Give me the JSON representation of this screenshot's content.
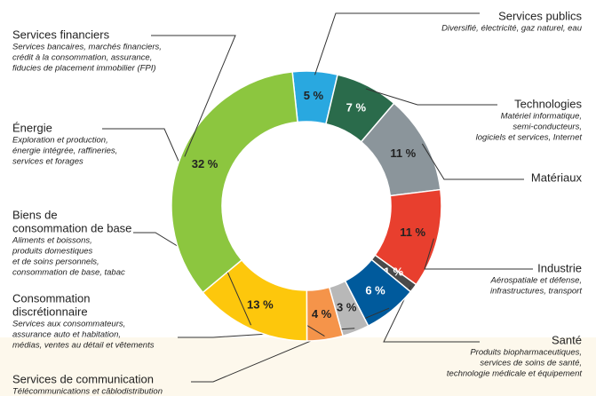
{
  "chart_data": {
    "type": "donut",
    "categories": [
      [
        "Services publics"
      ],
      [
        "Technologies"
      ],
      [
        "Matériaux"
      ],
      [
        "Industrie"
      ],
      [
        "Santé"
      ],
      [
        "Services de communication"
      ],
      [
        "Consommation",
        "discrétionnaire"
      ],
      [
        "Biens de",
        "consommation de base"
      ],
      [
        "Énergie"
      ],
      [
        "Services financiers"
      ]
    ],
    "descriptions": [
      [
        "Diversifié, électricité, gaz naturel, eau"
      ],
      [
        "Matériel informatique,",
        "semi-conducteurs,",
        "logiciels et services, Internet"
      ],
      [],
      [
        "Aérospatiale et défense,",
        "infrastructures, transport"
      ],
      [
        "Produits biopharmaceutiques,",
        "services de soins de santé,",
        "technologie médicale et équipement"
      ],
      [
        "Télécommunications et câblodistribution"
      ],
      [
        "Services aux consommateurs,",
        "assurance auto et habitation,",
        "médias, ventes au détail et vêtements"
      ],
      [
        "Aliments et boissons,",
        "produits domestiques",
        "et de soins personnels,",
        "consommation de base, tabac"
      ],
      [
        "Exploration et production,",
        "énergie intégrée, raffineries,",
        "services et forages"
      ],
      [
        "Services bancaires, marchés financiers,",
        "crédit à la consommation, assurance,",
        "fiducies de placement immobilier (FPI)"
      ]
    ],
    "values": [
      5,
      7,
      11,
      11,
      1,
      6,
      3,
      4,
      13,
      32
    ],
    "value_labels": [
      "5 %",
      "7 %",
      "11 %",
      "11 %",
      "1 %",
      "6 %",
      "3 %",
      "4 %",
      "13 %",
      "32 %"
    ],
    "colors": [
      "#29a8e0",
      "#2a6b4b",
      "#8b959b",
      "#e83f2e",
      "#4a4a4a",
      "#005a9c",
      "#b8b8b8",
      "#f5944a",
      "#fdc70c",
      "#8cc63f"
    ]
  }
}
